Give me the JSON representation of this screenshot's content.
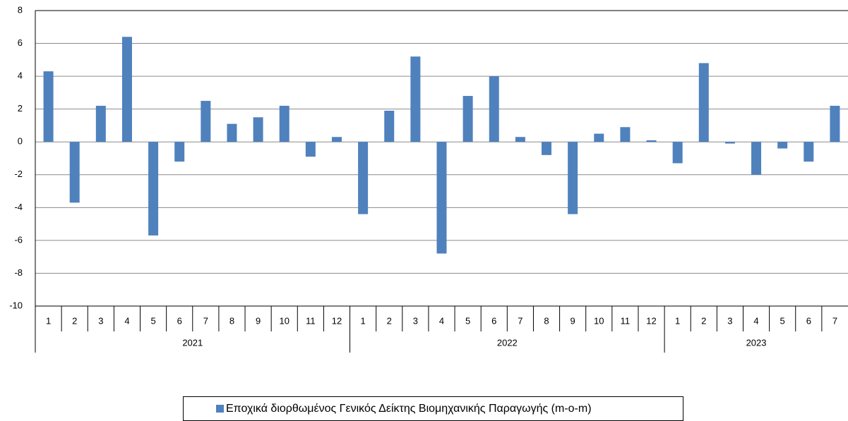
{
  "chart_data": {
    "type": "bar",
    "groups": [
      {
        "name": "2021",
        "categories": [
          "1",
          "2",
          "3",
          "4",
          "5",
          "6",
          "7",
          "8",
          "9",
          "10",
          "11",
          "12"
        ]
      },
      {
        "name": "2022",
        "categories": [
          "1",
          "2",
          "3",
          "4",
          "5",
          "6",
          "7",
          "8",
          "9",
          "10",
          "11",
          "12"
        ]
      },
      {
        "name": "2023",
        "categories": [
          "1",
          "2",
          "3",
          "4",
          "5",
          "6",
          "7"
        ]
      }
    ],
    "series": [
      {
        "name": "Εποχικά διορθωμένος Γενικός Δείκτης Βιομηχανικής Παραγωγής (m-o-m)",
        "color": "#4f81bd",
        "values": [
          4.3,
          -3.7,
          2.2,
          6.4,
          -5.7,
          -1.2,
          2.5,
          1.1,
          1.5,
          2.2,
          -0.9,
          0.3,
          -4.4,
          1.9,
          5.2,
          -6.8,
          2.8,
          4.0,
          0.3,
          -0.8,
          -4.4,
          0.5,
          0.9,
          0.1,
          -1.3,
          4.8,
          -0.1,
          -2.0,
          -0.4,
          -1.2,
          2.2
        ]
      }
    ],
    "ylim": [
      -10,
      8
    ],
    "yticks": [
      -10,
      -8,
      -6,
      -4,
      -2,
      0,
      2,
      4,
      6,
      8
    ],
    "grid": true,
    "legend": "bottom"
  }
}
